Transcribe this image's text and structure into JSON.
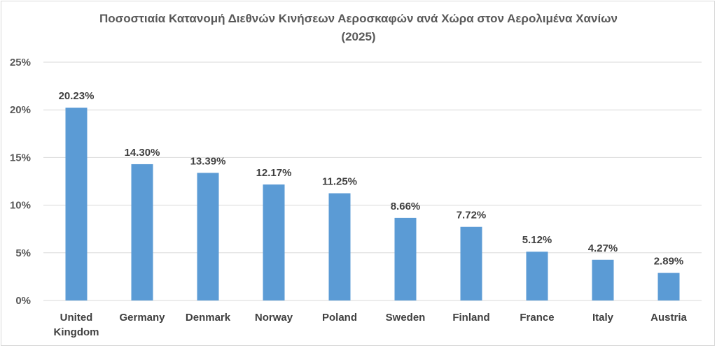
{
  "chart_data": {
    "type": "bar",
    "title_line1": "Ποσοστιαία Κατανομή Διεθνών Κινήσεων Αεροσκαφών ανά Χώρα στον Αερολιμένα Χανίων",
    "title_line2": "(2025)",
    "categories": [
      [
        "United",
        "Kingdom"
      ],
      [
        "Germany"
      ],
      [
        "Denmark"
      ],
      [
        "Norway"
      ],
      [
        "Poland"
      ],
      [
        "Sweden"
      ],
      [
        "Finland"
      ],
      [
        "France"
      ],
      [
        "Italy"
      ],
      [
        "Austria"
      ]
    ],
    "values": [
      20.23,
      14.3,
      13.39,
      12.17,
      11.25,
      8.66,
      7.72,
      5.12,
      4.27,
      2.89
    ],
    "data_labels": [
      "20.23%",
      "14.30%",
      "13.39%",
      "12.17%",
      "11.25%",
      "8.66%",
      "7.72%",
      "5.12%",
      "4.27%",
      "2.89%"
    ],
    "y_ticks": [
      "0%",
      "5%",
      "10%",
      "15%",
      "20%",
      "25%"
    ],
    "ylim": [
      0,
      25
    ],
    "grid": true,
    "bar_color": "#5b9bd5",
    "grid_color": "#d9d9d9"
  }
}
